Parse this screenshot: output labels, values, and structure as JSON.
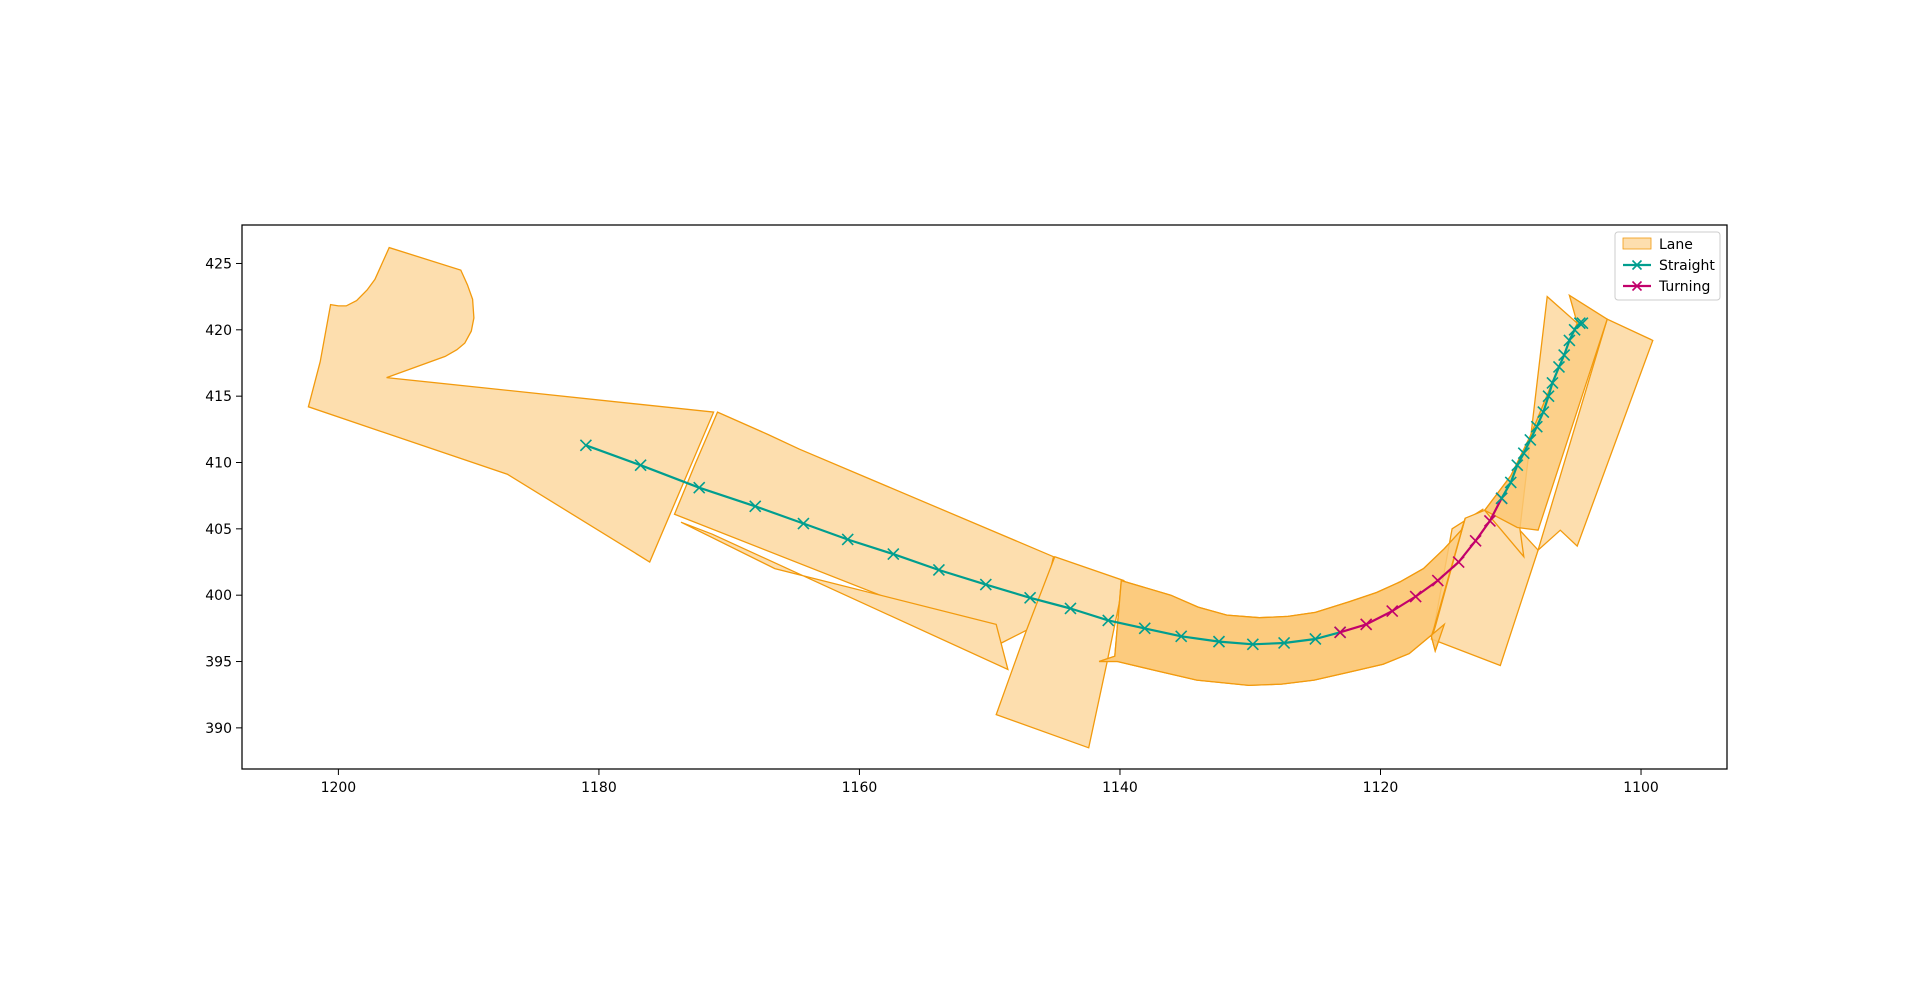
{
  "chart_data": {
    "type": "scatter",
    "title": "",
    "xlabel": "",
    "ylabel": "",
    "xlim": [
      1207.4,
      1093.4
    ],
    "ylim": [
      386.9,
      427.9
    ],
    "x_ticks": [
      1200,
      1180,
      1160,
      1140,
      1120,
      1100
    ],
    "y_ticks": [
      390,
      395,
      400,
      405,
      410,
      415,
      420,
      425
    ],
    "x_tick_labels": [
      "1200",
      "1180",
      "1160",
      "1140",
      "1120",
      "1100"
    ],
    "y_tick_labels": [
      "390",
      "395",
      "400",
      "405",
      "410",
      "415",
      "420",
      "425"
    ],
    "x_inverted": true,
    "grid": false,
    "legend_position": "top-right",
    "legend": [
      {
        "label": "Lane",
        "kind": "patch",
        "color": "#fddeae"
      },
      {
        "label": "Straight",
        "kind": "line",
        "color": "#009e8f"
      },
      {
        "label": "Turning",
        "kind": "line",
        "color": "#c2006b"
      }
    ],
    "colors": {
      "lane_fill": "#fddeae",
      "lane_overlap_fill": "#fbc875",
      "lane_edge": "#f29a0d",
      "straight": "#009e8f",
      "turning": "#c2006b"
    },
    "lanes": [
      {
        "name": "lane-1",
        "polygon": [
          [
            1202.3,
            414.2
          ],
          [
            1201.4,
            417.6
          ],
          [
            1200.6,
            421.9
          ],
          [
            1200.0,
            421.8
          ],
          [
            1199.4,
            421.8
          ],
          [
            1198.6,
            422.2
          ],
          [
            1197.8,
            423.0
          ],
          [
            1197.2,
            423.8
          ],
          [
            1196.1,
            426.2
          ],
          [
            1190.6,
            424.5
          ],
          [
            1190.1,
            423.4
          ],
          [
            1189.7,
            422.3
          ],
          [
            1189.6,
            420.9
          ],
          [
            1189.8,
            419.9
          ],
          [
            1190.3,
            419.0
          ],
          [
            1190.9,
            418.5
          ],
          [
            1191.8,
            418.0
          ],
          [
            1196.3,
            416.4
          ],
          [
            1171.2,
            413.8
          ],
          [
            1176.1,
            402.5
          ],
          [
            1187.0,
            409.1
          ]
        ]
      },
      {
        "name": "lane-2",
        "polygon": [
          [
            1170.9,
            413.8
          ],
          [
            1167.0,
            412.1
          ],
          [
            1164.6,
            411.0
          ],
          [
            1145.1,
            402.9
          ],
          [
            1146.3,
            397.8
          ],
          [
            1149.1,
            396.4
          ],
          [
            1174.2,
            406.1
          ],
          [
            1172.6,
            409.9
          ]
        ]
      },
      {
        "name": "lane-3",
        "polygon": [
          [
            1173.7,
            405.5
          ],
          [
            1171.3,
            404.6
          ],
          [
            1148.6,
            394.4
          ],
          [
            1149.5,
            397.8
          ],
          [
            1166.5,
            402.0
          ]
        ]
      },
      {
        "name": "lane-4",
        "polygon": [
          [
            1145.0,
            402.9
          ],
          [
            1139.7,
            401.1
          ],
          [
            1141.0,
            394.9
          ],
          [
            1142.4,
            388.5
          ],
          [
            1149.5,
            391.0
          ],
          [
            1147.2,
            397.3
          ]
        ]
      },
      {
        "name": "lane-5",
        "polygon": [
          [
            1139.9,
            401.1
          ],
          [
            1136.1,
            400.0
          ],
          [
            1134.0,
            399.1
          ],
          [
            1131.8,
            398.5
          ],
          [
            1129.3,
            398.3
          ],
          [
            1127.1,
            398.4
          ],
          [
            1125.0,
            398.7
          ],
          [
            1122.4,
            399.5
          ],
          [
            1120.3,
            400.2
          ],
          [
            1118.5,
            401.0
          ],
          [
            1116.7,
            402.0
          ],
          [
            1115.1,
            403.5
          ],
          [
            1113.8,
            404.9
          ],
          [
            1112.1,
            406.5
          ],
          [
            1114.5,
            405.0
          ],
          [
            1115.9,
            397.5
          ],
          [
            1116.1,
            396.9
          ],
          [
            1115.8,
            395.8
          ],
          [
            1115.1,
            397.8
          ],
          [
            1117.8,
            395.6
          ],
          [
            1119.8,
            394.8
          ],
          [
            1122.4,
            394.2
          ],
          [
            1125.1,
            393.6
          ],
          [
            1127.6,
            393.3
          ],
          [
            1130.1,
            393.2
          ],
          [
            1134.1,
            393.6
          ],
          [
            1137.2,
            394.3
          ],
          [
            1140.2,
            395.0
          ],
          [
            1141.6,
            395.0
          ],
          [
            1140.4,
            395.4
          ]
        ]
      },
      {
        "name": "lane-6",
        "polygon": [
          [
            1113.5,
            405.8
          ],
          [
            1112.0,
            406.4
          ],
          [
            1109.5,
            405.1
          ],
          [
            1107.9,
            403.4
          ],
          [
            1110.8,
            394.7
          ],
          [
            1116.1,
            396.7
          ],
          [
            1115.8,
            397.6
          ]
        ]
      },
      {
        "name": "lane-7",
        "polygon": [
          [
            1109.0,
            402.9
          ],
          [
            1112.0,
            406.4
          ],
          [
            1110.0,
            409.0
          ],
          [
            1108.5,
            412.0
          ],
          [
            1106.4,
            417.0
          ],
          [
            1104.9,
            420.5
          ],
          [
            1107.2,
            422.5
          ],
          [
            1109.3,
            405.0
          ]
        ]
      },
      {
        "name": "lane-8",
        "polygon": [
          [
            1107.9,
            403.4
          ],
          [
            1102.6,
            420.8
          ],
          [
            1099.1,
            419.2
          ],
          [
            1104.9,
            403.7
          ],
          [
            1106.2,
            404.9
          ]
        ]
      }
    ],
    "lane_overlaps": [
      {
        "name": "overlap-1",
        "polygon": [
          [
            1139.9,
            401.1
          ],
          [
            1136.1,
            400.0
          ],
          [
            1134.0,
            399.1
          ],
          [
            1131.8,
            398.5
          ],
          [
            1129.3,
            398.3
          ],
          [
            1127.1,
            398.4
          ],
          [
            1125.0,
            398.7
          ],
          [
            1122.4,
            399.5
          ],
          [
            1120.3,
            400.2
          ],
          [
            1118.5,
            401.0
          ],
          [
            1116.7,
            402.0
          ],
          [
            1115.1,
            403.5
          ],
          [
            1113.8,
            404.9
          ],
          [
            1113.5,
            405.8
          ],
          [
            1115.9,
            397.5
          ],
          [
            1116.1,
            396.9
          ],
          [
            1115.8,
            395.8
          ],
          [
            1115.1,
            397.8
          ],
          [
            1117.8,
            395.6
          ],
          [
            1119.8,
            394.8
          ],
          [
            1122.4,
            394.2
          ],
          [
            1125.1,
            393.6
          ],
          [
            1127.6,
            393.3
          ],
          [
            1130.1,
            393.2
          ],
          [
            1134.1,
            393.6
          ],
          [
            1137.2,
            394.3
          ],
          [
            1140.2,
            395.0
          ],
          [
            1141.6,
            395.0
          ],
          [
            1140.4,
            395.4
          ]
        ]
      },
      {
        "name": "overlap-2",
        "polygon": [
          [
            1112.0,
            406.4
          ],
          [
            1110.0,
            409.0
          ],
          [
            1108.5,
            412.0
          ],
          [
            1106.4,
            417.0
          ],
          [
            1104.9,
            420.5
          ],
          [
            1105.5,
            422.6
          ],
          [
            1102.6,
            420.8
          ],
          [
            1107.9,
            404.9
          ],
          [
            1109.5,
            405.1
          ]
        ]
      }
    ],
    "series": [
      {
        "name": "Straight",
        "color": "#009e8f",
        "marker": "x",
        "x": [
          1181.0,
          1176.8,
          1172.3,
          1168.0,
          1164.3,
          1160.9,
          1157.4,
          1153.9,
          1150.3,
          1146.9,
          1143.8,
          1140.9,
          1138.1,
          1135.3,
          1132.4,
          1129.8,
          1127.4,
          1125.0,
          1123.1
        ],
        "y": [
          411.3,
          409.8,
          408.1,
          406.7,
          405.4,
          404.2,
          403.1,
          401.9,
          400.8,
          399.8,
          399.0,
          398.1,
          397.5,
          396.9,
          396.5,
          396.3,
          396.4,
          396.7,
          397.2
        ]
      },
      {
        "name": "Turning",
        "color": "#c2006b",
        "marker": "x",
        "x": [
          1123.1,
          1121.1,
          1119.1,
          1117.3,
          1115.6,
          1114.0,
          1112.7,
          1111.6,
          1110.7
        ],
        "y": [
          397.2,
          397.8,
          398.8,
          399.9,
          401.1,
          402.5,
          404.1,
          405.6,
          407.3
        ]
      },
      {
        "name": "Straight",
        "color": "#009e8f",
        "marker": "x",
        "x": [
          1110.7,
          1110.0,
          1109.5,
          1109.0,
          1108.5,
          1108.0,
          1107.5,
          1107.1,
          1106.8,
          1106.3,
          1105.9,
          1105.5,
          1105.1,
          1104.7,
          1104.5
        ],
        "y": [
          407.3,
          408.5,
          409.8,
          410.7,
          411.7,
          412.7,
          413.8,
          415.0,
          416.0,
          417.2,
          418.1,
          419.2,
          420.0,
          420.5,
          420.5
        ]
      }
    ]
  }
}
